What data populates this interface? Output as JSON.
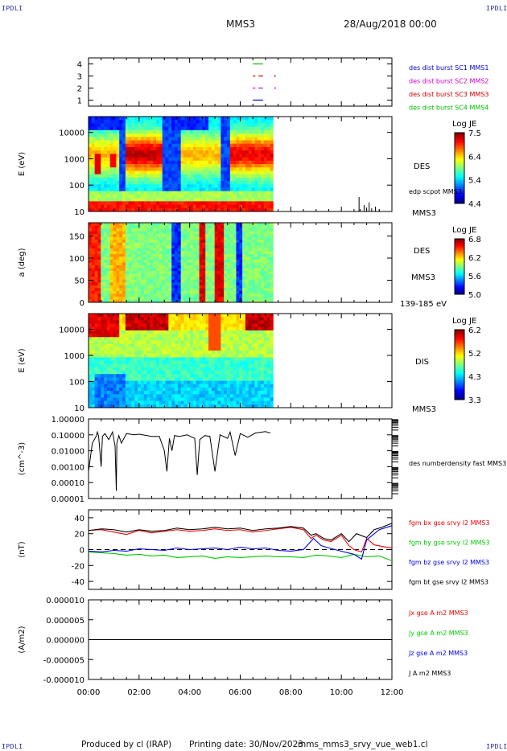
{
  "corner_label": "IPDLI",
  "header": {
    "mission": "MMS3",
    "datetime": "28/Aug/2018 00:00"
  },
  "footer": {
    "producer": "Produced by cl (IRAP)",
    "printing": "Printing date: 30/Nov/2023",
    "file": "mms_mms3_srvy_vue_web1.cl"
  },
  "colors": {
    "mms1": "#0000cc",
    "mms2": "#cc00cc",
    "mms3": "#cc0000",
    "mms4": "#00bb00",
    "bx": "#ee0000",
    "by": "#00cc00",
    "bz": "#0000ee",
    "bt": "#000000"
  },
  "chart_data": [
    {
      "type": "line",
      "id": "availability",
      "ylabel": "",
      "ylim": [
        0.5,
        4.5
      ],
      "yticks": [
        "1",
        "2",
        "3",
        "4"
      ],
      "series": [
        {
          "name": "des dist burst SC1 MMS1",
          "y": 1,
          "segments": [
            [
              6.5,
              6.9
            ]
          ],
          "dots": []
        },
        {
          "name": "des dist burst SC2 MMS2",
          "y": 2,
          "segments": [
            [
              6.5,
              6.6
            ],
            [
              6.72,
              6.9
            ]
          ],
          "dots": [
            7.35
          ]
        },
        {
          "name": "des dist burst SC3 MMS3",
          "y": 3,
          "segments": [
            [
              6.5,
              6.6
            ],
            [
              6.72,
              6.9
            ]
          ],
          "dots": [
            7.35
          ]
        },
        {
          "name": "des dist burst SC4 MMS4",
          "y": 4,
          "segments": [
            [
              6.5,
              6.9
            ]
          ],
          "dots": []
        }
      ]
    },
    {
      "type": "heatmap",
      "id": "des-energy",
      "ylabel": "E (eV)",
      "scale": "log",
      "yticks": [
        "10",
        "100",
        "1000",
        "10000"
      ],
      "data_end_hour": 7.3,
      "right_labels": [
        "DES",
        "edp scpot MMS3",
        "MMS3"
      ],
      "colorbar": {
        "title": "Log JE",
        "min": 4.4,
        "max": 7.5,
        "ticks": [
          "7.5",
          "6.4",
          "5.4",
          "4.4"
        ]
      }
    },
    {
      "type": "heatmap",
      "id": "des-pitch",
      "ylabel": "a (deg)",
      "ylim": [
        0,
        180
      ],
      "yticks": [
        "0",
        "50",
        "100",
        "150"
      ],
      "data_end_hour": 7.3,
      "right_labels": [
        "DES",
        "MMS3",
        "139-185 eV"
      ],
      "colorbar": {
        "title": "Log JE",
        "min": 5.0,
        "max": 6.8,
        "ticks": [
          "6.8",
          "6.2",
          "5.6",
          "5.0"
        ]
      }
    },
    {
      "type": "heatmap",
      "id": "dis-energy",
      "ylabel": "E (eV)",
      "scale": "log",
      "yticks": [
        "10",
        "100",
        "1000",
        "10000"
      ],
      "data_end_hour": 7.3,
      "right_labels": [
        "DIS",
        "MMS3"
      ],
      "colorbar": {
        "title": "Log JE",
        "min": 3.3,
        "max": 6.2,
        "ticks": [
          "6.2",
          "5.2",
          "4.3",
          "3.3"
        ]
      }
    },
    {
      "type": "line",
      "id": "density",
      "ylabel": "(cm^-3)",
      "scale": "log",
      "ylim": [
        1e-05,
        1.0
      ],
      "yticks": [
        "0.00001",
        "0.00010",
        "0.00100",
        "0.01000",
        "0.10000",
        "1.00000"
      ],
      "series": [
        {
          "name": "des numberdensity fast MMS3",
          "x": [
            0.0,
            0.15,
            0.3,
            0.35,
            0.4,
            0.5,
            0.55,
            0.65,
            0.8,
            0.95,
            1.05,
            1.1,
            1.12,
            1.2,
            1.3,
            1.5,
            1.8,
            2.0,
            2.5,
            2.8,
            3.0,
            3.1,
            3.2,
            3.3,
            3.4,
            3.6,
            3.9,
            4.2,
            4.3,
            4.4,
            4.6,
            4.8,
            5.0,
            5.2,
            5.5,
            5.6,
            5.8,
            6.0,
            6.3,
            6.6,
            7.0,
            7.2
          ],
          "y": [
            0.0005,
            0.03,
            0.08,
            0.15,
            0.08,
            0.001,
            0.08,
            0.12,
            0.05,
            0.15,
            0.02,
            3e-05,
            0.03,
            0.09,
            0.03,
            0.12,
            0.1,
            0.11,
            0.08,
            0.08,
            0.01,
            0.0005,
            0.06,
            0.01,
            0.09,
            0.08,
            0.1,
            0.06,
            0.0003,
            0.05,
            0.09,
            0.08,
            0.0005,
            0.1,
            0.06,
            0.15,
            0.005,
            0.12,
            0.07,
            0.13,
            0.16,
            0.13
          ]
        }
      ]
    },
    {
      "type": "line",
      "id": "fgm",
      "ylabel": "(nT)",
      "ylim": [
        -50,
        50
      ],
      "yticks": [
        "-40",
        "-20",
        "0",
        "20",
        "40"
      ],
      "series": [
        {
          "name": "fgm bx gse srvy l2 MMS3",
          "x": [
            0,
            0.5,
            1.0,
            1.5,
            2.0,
            2.5,
            3.0,
            3.5,
            4.0,
            4.5,
            5.0,
            5.5,
            6.0,
            6.5,
            7.0,
            7.5,
            8.0,
            8.5,
            8.8,
            9.0,
            9.3,
            9.6,
            10.0,
            10.3,
            10.5,
            10.8,
            11.0,
            11.3,
            11.6,
            12.0
          ],
          "y": [
            24,
            25,
            22,
            19,
            24,
            21,
            23,
            25,
            23,
            24,
            26,
            24,
            25,
            22,
            24,
            26,
            28,
            25,
            14,
            18,
            12,
            10,
            18,
            5,
            0,
            -3,
            14,
            6,
            4,
            2
          ]
        },
        {
          "name": "fgm by gse srvy l2 MMS3",
          "x": [
            0,
            0.5,
            1.0,
            1.5,
            2.0,
            2.5,
            3.0,
            3.5,
            4.0,
            4.5,
            5.0,
            5.5,
            6.0,
            6.5,
            7.0,
            7.5,
            8.0,
            8.5,
            9.0,
            9.5,
            10.0,
            10.5,
            11.0,
            11.5,
            12.0
          ],
          "y": [
            -3,
            -4,
            -5,
            -7,
            -6,
            -8,
            -7,
            -10,
            -9,
            -8,
            -11,
            -9,
            -10,
            -9,
            -8,
            -9,
            -9,
            -10,
            -7,
            -8,
            -10,
            -6,
            -9,
            -8,
            -14
          ]
        },
        {
          "name": "fgm bz gse srvy l2 MMS3",
          "x": [
            0,
            0.5,
            1.0,
            1.5,
            2.0,
            2.5,
            3.0,
            3.5,
            4.0,
            4.5,
            5.0,
            5.5,
            6.0,
            6.5,
            7.0,
            7.5,
            8.0,
            8.5,
            8.9,
            9.2,
            9.5,
            10.0,
            10.5,
            10.8,
            11.0,
            11.5,
            12.0
          ],
          "y": [
            -2,
            -3,
            -1,
            -2,
            1,
            0,
            -1,
            2,
            0,
            1,
            2,
            0,
            3,
            1,
            2,
            -1,
            -2,
            0,
            14,
            5,
            2,
            -2,
            -6,
            -12,
            12,
            25,
            30
          ]
        },
        {
          "name": "fgm bt gse srvy l2 MMS3",
          "x": [
            0,
            0.5,
            1.0,
            1.5,
            2.0,
            2.5,
            3.0,
            3.5,
            4.0,
            4.5,
            5.0,
            5.5,
            6.0,
            6.5,
            7.0,
            7.5,
            8.0,
            8.5,
            8.8,
            9.0,
            9.3,
            9.6,
            10.0,
            10.3,
            10.6,
            11.0,
            11.3,
            11.6,
            12.0
          ],
          "y": [
            24,
            26,
            25,
            22,
            25,
            23,
            24,
            27,
            25,
            26,
            28,
            26,
            27,
            24,
            26,
            27,
            29,
            27,
            18,
            20,
            14,
            12,
            20,
            10,
            20,
            15,
            25,
            28,
            33
          ]
        }
      ]
    },
    {
      "type": "line",
      "id": "current",
      "ylabel": "(A/m2)",
      "ylim": [
        -1e-05,
        1e-05
      ],
      "yticks": [
        "-0.000010",
        "-0.000005",
        "0.000000",
        "0.000005",
        "0.000010"
      ],
      "series": [
        {
          "name": "Jx gse A m2 MMS3",
          "x": [
            0,
            12
          ],
          "y": [
            0,
            0
          ]
        },
        {
          "name": "Jy gse A m2 MMS3",
          "x": [
            0,
            12
          ],
          "y": [
            0,
            0
          ]
        },
        {
          "name": "Jz gse A m2 MMS3",
          "x": [
            0,
            12
          ],
          "y": [
            0,
            0
          ]
        },
        {
          "name": "J A m2 MMS3",
          "x": [
            0,
            12
          ],
          "y": [
            0,
            0
          ]
        }
      ]
    }
  ],
  "xaxis": {
    "ticks": [
      "00:00",
      "02:00",
      "04:00",
      "06:00",
      "08:00",
      "10:00",
      "12:00"
    ],
    "range": [
      0,
      12
    ]
  }
}
